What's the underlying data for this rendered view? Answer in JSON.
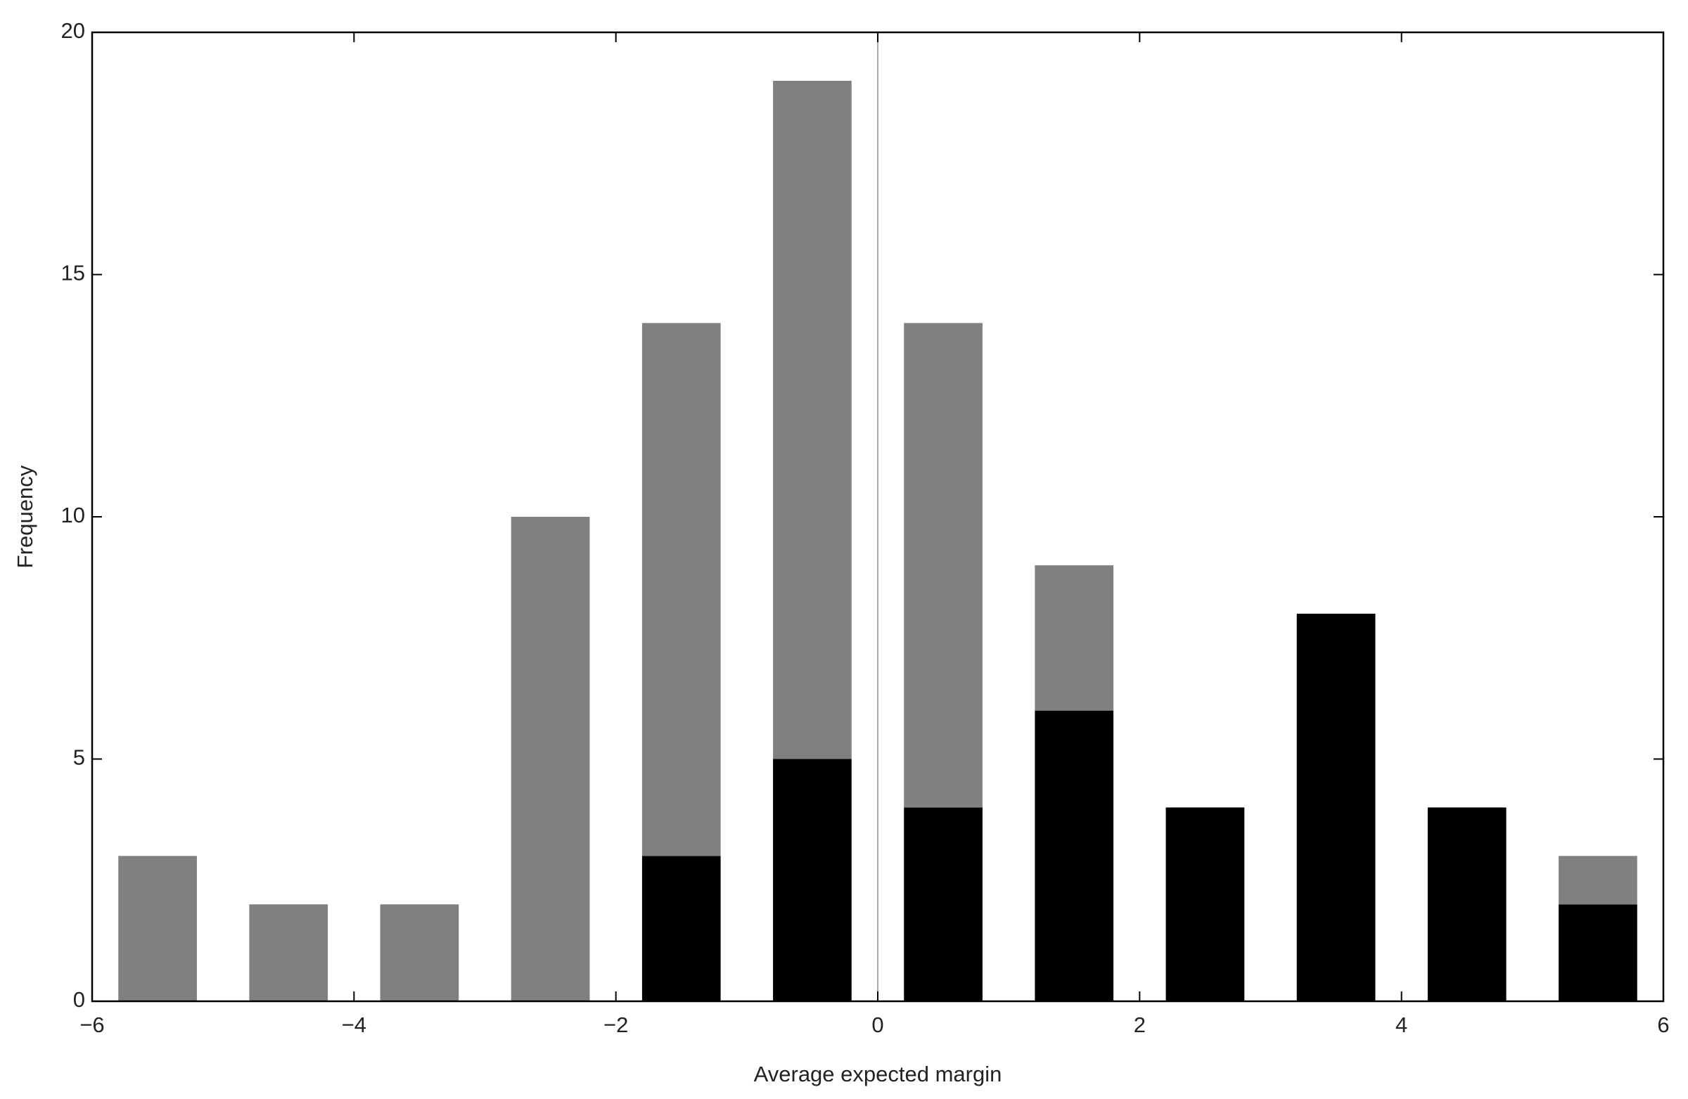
{
  "chart_data": {
    "type": "histogram",
    "stacked": true,
    "x_label": "Average expected margin",
    "y_label": "Frequency",
    "bins": [
      -6,
      -5,
      -4,
      -3,
      -2,
      -1,
      0,
      1,
      2,
      3,
      4,
      5,
      6
    ],
    "series": [
      {
        "color": "#000000",
        "values": [
          0,
          0,
          0,
          0,
          3,
          5,
          4,
          6,
          4,
          8,
          4,
          2
        ]
      },
      {
        "color": "#808080",
        "values": [
          3,
          2,
          2,
          10,
          11,
          14,
          10,
          3,
          0,
          0,
          0,
          1
        ]
      }
    ],
    "xlim": [
      -6,
      6
    ],
    "xticks": [
      {
        "value": -6,
        "label": "−6"
      },
      {
        "value": -4,
        "label": "−4"
      },
      {
        "value": -2,
        "label": "−2"
      },
      0,
      2,
      4,
      6
    ],
    "ylim": [
      0,
      20
    ],
    "yticks": [
      0,
      5,
      10,
      15,
      20
    ],
    "grid": false
  }
}
